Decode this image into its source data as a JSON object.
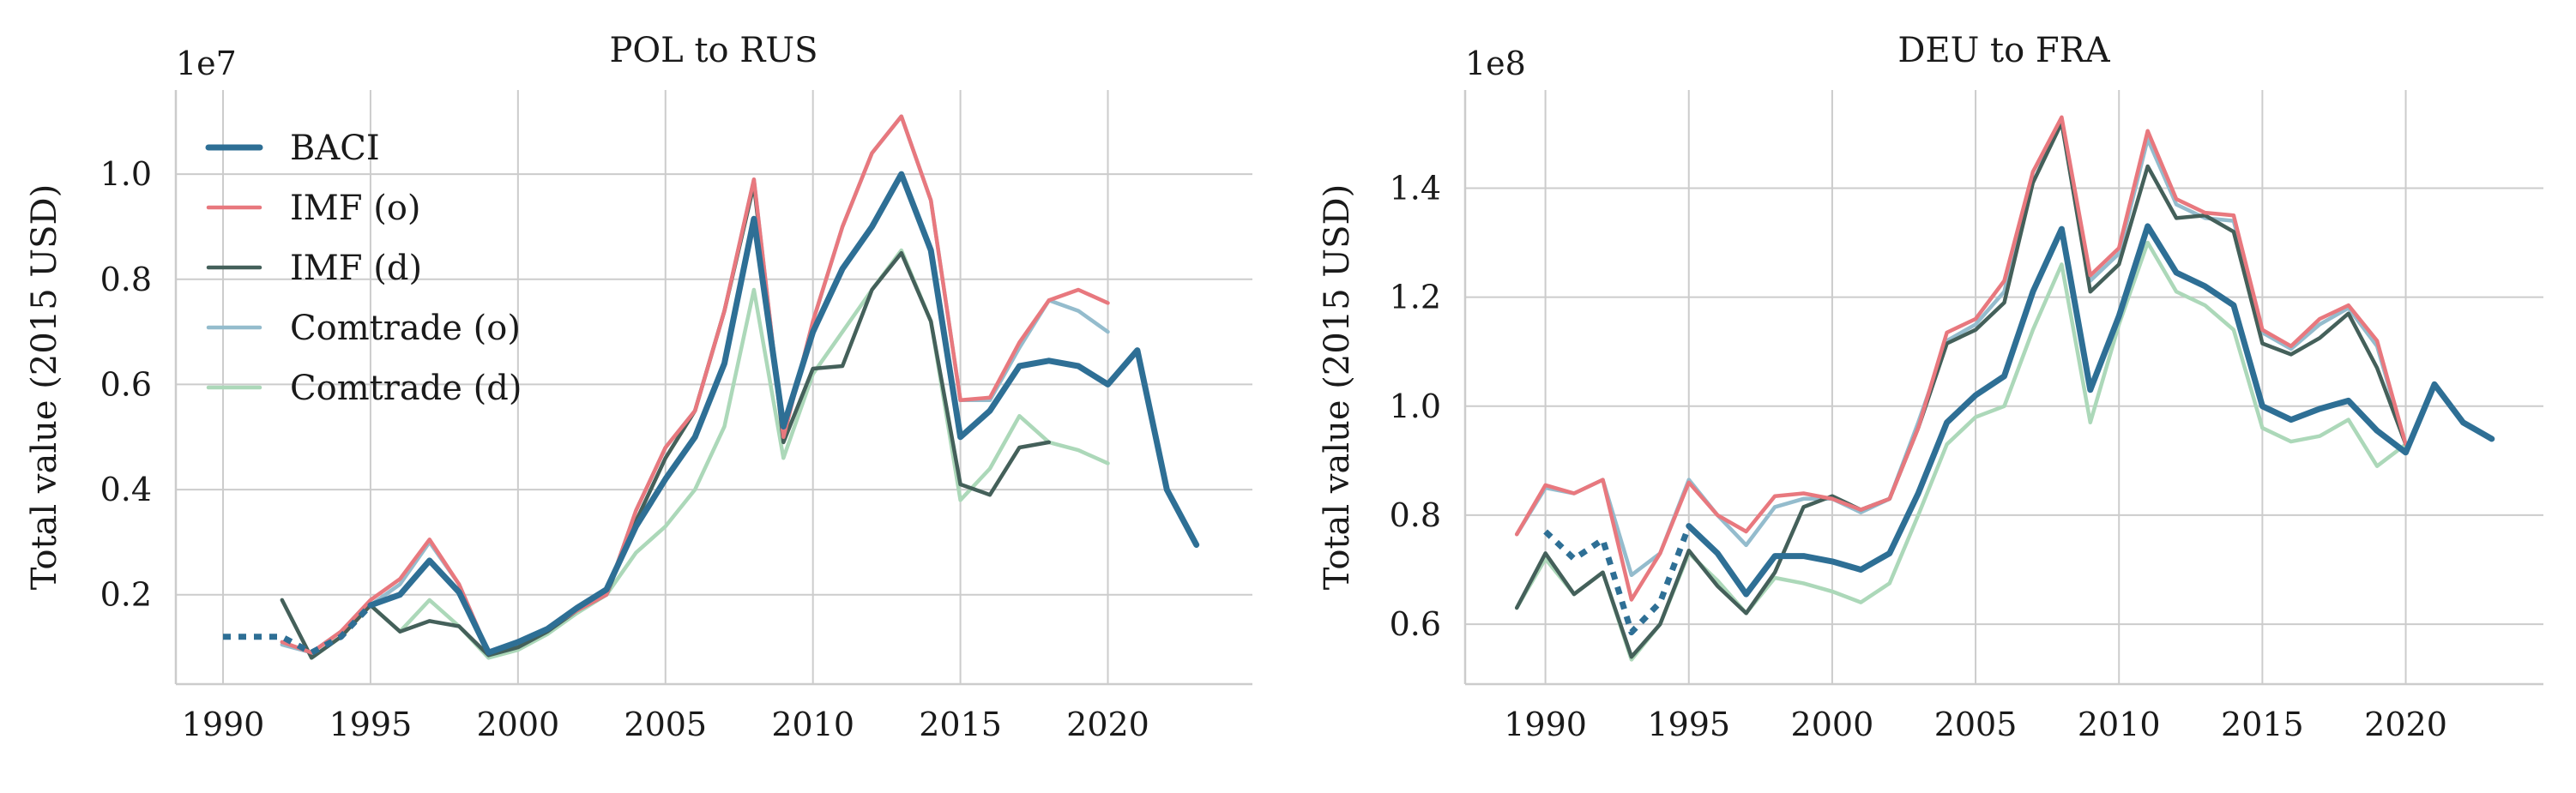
{
  "colors": {
    "baci": "#2e6f95",
    "imf_o": "#e8787e",
    "imf_d": "#44605a",
    "comtrade_o": "#94bccd",
    "comtrade_d": "#acd8b9"
  },
  "legend": [
    "BACI",
    "IMF (o)",
    "IMF (d)",
    "Comtrade (o)",
    "Comtrade (d)"
  ],
  "chart_data": [
    {
      "type": "line",
      "title": "POL to RUS",
      "ylabel": "Total value (2015 USD)",
      "offset_label": "1e7",
      "xlim": [
        1988.4,
        2024.9
      ],
      "ylim": [
        0.03,
        1.16
      ],
      "xticks": [
        1990,
        1995,
        2000,
        2005,
        2010,
        2015,
        2020
      ],
      "yticks": [
        0.2,
        0.4,
        0.6,
        0.8,
        1.0
      ],
      "ytick_labels": [
        "0.2",
        "0.4",
        "0.6",
        "0.8",
        "1.0"
      ],
      "series": [
        {
          "name": "Comtrade (d)",
          "color_key": "comtrade_d",
          "x": [
            1993,
            1994,
            1995,
            1996,
            1997,
            1998,
            1999,
            2000,
            2001,
            2002,
            2003,
            2004,
            2005,
            2006,
            2007,
            2008,
            2009,
            2010,
            2011,
            2012,
            2013,
            2014,
            2015,
            2016,
            2017,
            2018,
            2019,
            2020
          ],
          "y": [
            0.08,
            0.12,
            0.18,
            0.13,
            0.19,
            0.14,
            0.08,
            0.095,
            0.125,
            0.165,
            0.2,
            0.28,
            0.33,
            0.4,
            0.52,
            0.78,
            0.46,
            0.62,
            0.7,
            0.78,
            0.855,
            0.72,
            0.38,
            0.44,
            0.54,
            0.49,
            0.475,
            0.45
          ]
        },
        {
          "name": "Comtrade (o)",
          "color_key": "comtrade_o",
          "x": [
            1992,
            1993,
            1994,
            1995,
            1996,
            1997,
            1998,
            1999,
            2000,
            2001,
            2002,
            2003,
            2004,
            2005,
            2006,
            2007,
            2008,
            2009,
            2010,
            2011,
            2012,
            2013,
            2014,
            2015,
            2016,
            2017,
            2018,
            2019,
            2020
          ],
          "y": [
            0.105,
            0.09,
            0.13,
            0.18,
            0.22,
            0.3,
            0.22,
            0.09,
            0.11,
            0.135,
            0.17,
            0.2,
            0.36,
            0.48,
            0.55,
            0.74,
            0.99,
            0.5,
            0.72,
            0.9,
            1.04,
            1.11,
            0.95,
            0.57,
            0.57,
            0.67,
            0.76,
            0.74,
            0.7
          ]
        },
        {
          "name": "IMF (d)",
          "color_key": "imf_d",
          "x": [
            1992,
            1993,
            1994,
            1995,
            1996,
            1997,
            1998,
            1999,
            2000,
            2001,
            2002,
            2003,
            2004,
            2005,
            2006,
            2007,
            2008,
            2009,
            2010,
            2011,
            2012,
            2013,
            2014,
            2015,
            2016,
            2017,
            2018
          ],
          "y": [
            0.19,
            0.08,
            0.12,
            0.18,
            0.13,
            0.15,
            0.14,
            0.085,
            0.1,
            0.13,
            0.17,
            0.2,
            0.34,
            0.46,
            0.55,
            0.74,
            0.98,
            0.49,
            0.63,
            0.635,
            0.78,
            0.85,
            0.72,
            0.41,
            0.39,
            0.48,
            0.49
          ]
        },
        {
          "name": "IMF (o)",
          "color_key": "imf_o",
          "x": [
            1992,
            1993,
            1994,
            1995,
            1996,
            1997,
            1998,
            1999,
            2000,
            2001,
            2002,
            2003,
            2004,
            2005,
            2006,
            2007,
            2008,
            2009,
            2010,
            2011,
            2012,
            2013,
            2014,
            2015,
            2016,
            2017,
            2018,
            2019,
            2020
          ],
          "y": [
            0.11,
            0.09,
            0.13,
            0.19,
            0.23,
            0.305,
            0.22,
            0.09,
            0.11,
            0.135,
            0.17,
            0.2,
            0.36,
            0.48,
            0.55,
            0.74,
            0.99,
            0.5,
            0.72,
            0.9,
            1.04,
            1.11,
            0.95,
            0.57,
            0.575,
            0.68,
            0.76,
            0.78,
            0.755
          ]
        },
        {
          "name": "BACI (early)",
          "color_key": "baci",
          "dashed": true,
          "x": [
            1990,
            1991,
            1992,
            1993,
            1994,
            1995
          ],
          "y": [
            0.12,
            0.12,
            0.12,
            0.09,
            0.12,
            0.18
          ]
        },
        {
          "name": "BACI",
          "color_key": "baci",
          "x": [
            1995,
            1996,
            1997,
            1998,
            1999,
            2000,
            2001,
            2002,
            2003,
            2004,
            2005,
            2006,
            2007,
            2008,
            2009,
            2010,
            2011,
            2012,
            2013,
            2014,
            2015,
            2016,
            2017,
            2018,
            2019,
            2020,
            2021,
            2022,
            2023
          ],
          "y": [
            0.18,
            0.2,
            0.265,
            0.205,
            0.09,
            0.11,
            0.135,
            0.175,
            0.21,
            0.33,
            0.42,
            0.5,
            0.64,
            0.915,
            0.52,
            0.7,
            0.82,
            0.9,
            1.0,
            0.855,
            0.5,
            0.55,
            0.635,
            0.645,
            0.635,
            0.6,
            0.665,
            0.4,
            0.295
          ]
        }
      ]
    },
    {
      "type": "line",
      "title": "DEU to FRA",
      "ylabel": "Total value (2015 USD)",
      "offset_label": "1e8",
      "xlim": [
        1987.2,
        2024.8
      ],
      "ylim": [
        0.49,
        1.58
      ],
      "xticks": [
        1990,
        1995,
        2000,
        2005,
        2010,
        2015,
        2020
      ],
      "yticks": [
        0.6,
        0.8,
        1.0,
        1.2,
        1.4
      ],
      "ytick_labels": [
        "0.6",
        "0.8",
        "1.0",
        "1.2",
        "1.4"
      ],
      "series": [
        {
          "name": "Comtrade (d)",
          "color_key": "comtrade_d",
          "x": [
            1989,
            1990,
            1991,
            1992,
            1993,
            1994,
            1995,
            1996,
            1997,
            1998,
            1999,
            2000,
            2001,
            2002,
            2003,
            2004,
            2005,
            2006,
            2007,
            2008,
            2009,
            2010,
            2011,
            2012,
            2013,
            2014,
            2015,
            2016,
            2017,
            2018,
            2019,
            2020
          ],
          "y": [
            0.63,
            0.72,
            0.655,
            0.695,
            0.535,
            0.6,
            0.73,
            0.68,
            0.62,
            0.685,
            0.675,
            0.66,
            0.64,
            0.675,
            0.8,
            0.93,
            0.98,
            1.0,
            1.14,
            1.26,
            0.97,
            1.15,
            1.3,
            1.21,
            1.185,
            1.14,
            0.96,
            0.935,
            0.945,
            0.975,
            0.89,
            0.93
          ]
        },
        {
          "name": "Comtrade (o)",
          "color_key": "comtrade_o",
          "x": [
            1989,
            1990,
            1991,
            1992,
            1993,
            1994,
            1995,
            1996,
            1997,
            1998,
            1999,
            2000,
            2001,
            2002,
            2003,
            2004,
            2005,
            2006,
            2007,
            2008,
            2009,
            2010,
            2011,
            2012,
            2013,
            2014,
            2015,
            2016,
            2017,
            2018,
            2019,
            2020
          ],
          "y": [
            0.765,
            0.85,
            0.84,
            0.865,
            0.69,
            0.73,
            0.865,
            0.8,
            0.745,
            0.815,
            0.83,
            0.83,
            0.805,
            0.83,
            0.97,
            1.12,
            1.15,
            1.21,
            1.43,
            1.52,
            1.23,
            1.28,
            1.49,
            1.37,
            1.345,
            1.34,
            1.135,
            1.105,
            1.15,
            1.18,
            1.11,
            0.93
          ]
        },
        {
          "name": "IMF (d)",
          "color_key": "imf_d",
          "x": [
            1989,
            1990,
            1991,
            1992,
            1993,
            1994,
            1995,
            1996,
            1997,
            1998,
            1999,
            2000,
            2001,
            2002,
            2003,
            2004,
            2005,
            2006,
            2007,
            2008,
            2009,
            2010,
            2011,
            2012,
            2013,
            2014,
            2015,
            2016,
            2017,
            2018,
            2019,
            2020
          ],
          "y": [
            0.63,
            0.73,
            0.655,
            0.695,
            0.54,
            0.6,
            0.735,
            0.67,
            0.62,
            0.695,
            0.815,
            0.835,
            0.81,
            0.83,
            0.96,
            1.115,
            1.14,
            1.19,
            1.41,
            1.52,
            1.21,
            1.26,
            1.44,
            1.345,
            1.35,
            1.32,
            1.115,
            1.095,
            1.125,
            1.17,
            1.07,
            0.93
          ]
        },
        {
          "name": "IMF (o)",
          "color_key": "imf_o",
          "x": [
            1989,
            1990,
            1991,
            1992,
            1993,
            1994,
            1995,
            1996,
            1997,
            1998,
            1999,
            2000,
            2001,
            2002,
            2003,
            2004,
            2005,
            2006,
            2007,
            2008,
            2009,
            2010,
            2011,
            2012,
            2013,
            2014,
            2015,
            2016,
            2017,
            2018,
            2019,
            2020
          ],
          "y": [
            0.765,
            0.855,
            0.84,
            0.865,
            0.645,
            0.73,
            0.86,
            0.8,
            0.77,
            0.835,
            0.84,
            0.83,
            0.81,
            0.83,
            0.96,
            1.135,
            1.16,
            1.23,
            1.43,
            1.53,
            1.24,
            1.29,
            1.505,
            1.38,
            1.355,
            1.35,
            1.14,
            1.11,
            1.16,
            1.185,
            1.12,
            0.93
          ]
        },
        {
          "name": "BACI (early)",
          "color_key": "baci",
          "dashed": true,
          "x": [
            1990,
            1991,
            1992,
            1993,
            1994,
            1995
          ],
          "y": [
            0.77,
            0.72,
            0.755,
            0.585,
            0.64,
            0.78
          ]
        },
        {
          "name": "BACI",
          "color_key": "baci",
          "x": [
            1995,
            1996,
            1997,
            1998,
            1999,
            2000,
            2001,
            2002,
            2003,
            2004,
            2005,
            2006,
            2007,
            2008,
            2009,
            2010,
            2011,
            2012,
            2013,
            2014,
            2015,
            2016,
            2017,
            2018,
            2019,
            2020,
            2021,
            2022,
            2023
          ],
          "y": [
            0.78,
            0.73,
            0.655,
            0.725,
            0.725,
            0.715,
            0.7,
            0.73,
            0.84,
            0.97,
            1.02,
            1.055,
            1.21,
            1.325,
            1.03,
            1.165,
            1.33,
            1.245,
            1.22,
            1.185,
            1.0,
            0.975,
            0.995,
            1.01,
            0.955,
            0.915,
            1.04,
            0.97,
            0.94
          ]
        }
      ]
    }
  ]
}
